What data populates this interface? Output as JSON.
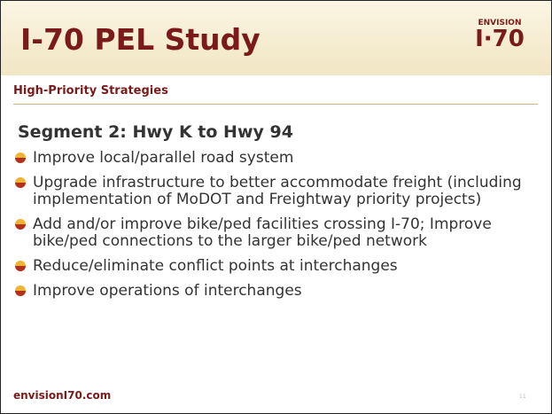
{
  "header": {
    "title": "I-70 PEL Study",
    "logo_top": "ENVISION",
    "logo_main": "I·70"
  },
  "subtitle": "High-Priority Strategies",
  "heading": "Segment 2:  Hwy K to Hwy 94",
  "bullets": [
    "Improve local/parallel road system",
    "Upgrade infrastructure to better accommodate freight (including implementation of MoDOT and Freightway priority projects)",
    "Add and/or improve bike/ped facilities crossing I-70; Improve bike/ped connections to the larger bike/ped network",
    "Reduce/eliminate conflict points at interchanges",
    "Improve operations of interchanges"
  ],
  "footer": {
    "url": "envisionI70.com",
    "page": "11"
  }
}
